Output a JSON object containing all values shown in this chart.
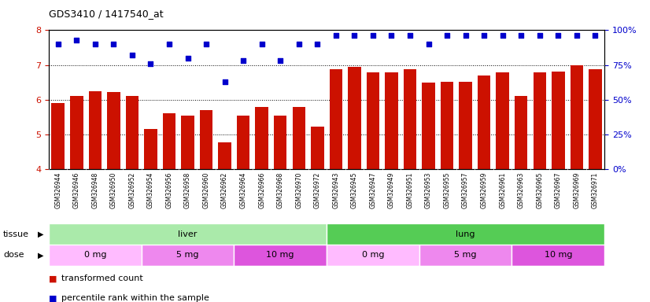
{
  "title": "GDS3410 / 1417540_at",
  "samples": [
    "GSM326944",
    "GSM326946",
    "GSM326948",
    "GSM326950",
    "GSM326952",
    "GSM326954",
    "GSM326956",
    "GSM326958",
    "GSM326960",
    "GSM326962",
    "GSM326964",
    "GSM326966",
    "GSM326968",
    "GSM326970",
    "GSM326972",
    "GSM326943",
    "GSM326945",
    "GSM326947",
    "GSM326949",
    "GSM326951",
    "GSM326953",
    "GSM326955",
    "GSM326957",
    "GSM326959",
    "GSM326961",
    "GSM326963",
    "GSM326965",
    "GSM326967",
    "GSM326969",
    "GSM326971"
  ],
  "bar_values": [
    5.9,
    6.1,
    6.25,
    6.22,
    6.1,
    5.15,
    5.6,
    5.55,
    5.7,
    4.78,
    5.55,
    5.78,
    5.55,
    5.78,
    5.22,
    6.88,
    6.95,
    6.78,
    6.78,
    6.88,
    6.5,
    6.52,
    6.52,
    6.7,
    6.78,
    6.1,
    6.78,
    6.82,
    6.98,
    6.88
  ],
  "scatter_values_pct": [
    90,
    93,
    90,
    90,
    82,
    76,
    90,
    80,
    90,
    63,
    78,
    90,
    78,
    90,
    90,
    96,
    96,
    96,
    96,
    96,
    90,
    96,
    96,
    96,
    96,
    96,
    96,
    96,
    96,
    96
  ],
  "bar_color": "#cc1100",
  "scatter_color": "#0000cc",
  "ylim_left": [
    4,
    8
  ],
  "ylim_right": [
    0,
    100
  ],
  "yticks_left": [
    4,
    5,
    6,
    7,
    8
  ],
  "yticks_right": [
    0,
    25,
    50,
    75,
    100
  ],
  "tissue_groups": [
    {
      "label": "liver",
      "start": 0,
      "end": 15,
      "color": "#aaeaaa"
    },
    {
      "label": "lung",
      "start": 15,
      "end": 30,
      "color": "#55cc55"
    }
  ],
  "dose_groups": [
    {
      "label": "0 mg",
      "start": 0,
      "end": 5,
      "color": "#ffbbff"
    },
    {
      "label": "5 mg",
      "start": 5,
      "end": 10,
      "color": "#ee88ee"
    },
    {
      "label": "10 mg",
      "start": 10,
      "end": 15,
      "color": "#dd55dd"
    },
    {
      "label": "0 mg",
      "start": 15,
      "end": 20,
      "color": "#ffbbff"
    },
    {
      "label": "5 mg",
      "start": 20,
      "end": 25,
      "color": "#ee88ee"
    },
    {
      "label": "10 mg",
      "start": 25,
      "end": 30,
      "color": "#dd55dd"
    }
  ],
  "legend_items": [
    {
      "label": "transformed count",
      "color": "#cc1100"
    },
    {
      "label": "percentile rank within the sample",
      "color": "#0000cc"
    }
  ],
  "grid_color": "black",
  "grid_style": "dotted",
  "tick_color_left": "#cc1100",
  "tick_color_right": "#0000cc",
  "bg_color": "#e8e8e8"
}
